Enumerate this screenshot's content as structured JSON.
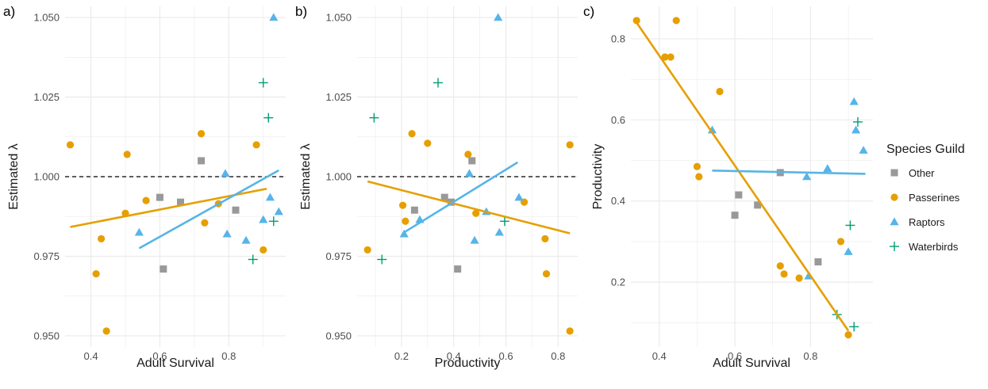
{
  "colors": {
    "Other": "#999999",
    "Passerines": "#E69F00",
    "Raptors": "#56B4E9",
    "Waterbirds": "#009E73",
    "grid": "#ebebeb",
    "refline": "#000000"
  },
  "legend": {
    "title": "Species Guild",
    "entries": [
      {
        "name": "Other",
        "shape": "square"
      },
      {
        "name": "Passerines",
        "shape": "circle"
      },
      {
        "name": "Raptors",
        "shape": "triangle"
      },
      {
        "name": "Waterbirds",
        "shape": "plus"
      }
    ],
    "placement": "right"
  },
  "chart_data": [
    {
      "type": "scatter",
      "panel_label": "a)",
      "xlabel": "Adult Survival",
      "ylabel": "Estimated λ",
      "xlim": [
        0.325,
        0.965
      ],
      "ylim": [
        0.9465,
        1.0535
      ],
      "xticks": [
        0.4,
        0.6,
        0.8
      ],
      "xtick_labels": [
        "0.4",
        "0.6",
        "0.8"
      ],
      "yticks": [
        0.95,
        0.975,
        1.0,
        1.025,
        1.05
      ],
      "ytick_labels": [
        "0.950",
        "0.975",
        "1.000",
        "1.025",
        "1.050"
      ],
      "grid": true,
      "hline": 1.0,
      "series": [
        {
          "name": "Other",
          "points": [
            [
              0.6,
              0.9935
            ],
            [
              0.61,
              0.971
            ],
            [
              0.66,
              0.992
            ],
            [
              0.72,
              1.005
            ],
            [
              0.82,
              0.9895
            ]
          ]
        },
        {
          "name": "Passerines",
          "points": [
            [
              0.34,
              1.01
            ],
            [
              0.415,
              0.9695
            ],
            [
              0.43,
              0.9805
            ],
            [
              0.445,
              0.9515
            ],
            [
              0.5,
              0.9885
            ],
            [
              0.505,
              1.007
            ],
            [
              0.56,
              0.9925
            ],
            [
              0.72,
              1.0135
            ],
            [
              0.73,
              0.9855
            ],
            [
              0.77,
              0.9915
            ],
            [
              0.88,
              1.01
            ],
            [
              0.9,
              0.977
            ]
          ]
        },
        {
          "name": "Raptors",
          "points": [
            [
              0.54,
              0.9825
            ],
            [
              0.79,
              1.001
            ],
            [
              0.795,
              0.982
            ],
            [
              0.85,
              0.98
            ],
            [
              0.9,
              0.9865
            ],
            [
              0.92,
              0.9935
            ],
            [
              0.93,
              1.05
            ],
            [
              0.945,
              0.989
            ]
          ]
        },
        {
          "name": "Waterbirds",
          "points": [
            [
              0.87,
              0.974
            ],
            [
              0.9,
              1.0295
            ],
            [
              0.915,
              1.0185
            ],
            [
              0.93,
              0.986
            ]
          ]
        }
      ],
      "fits": [
        {
          "name": "Passerines",
          "x": [
            0.34,
            0.91
          ],
          "y": [
            0.9842,
            0.9962
          ]
        },
        {
          "name": "Raptors",
          "x": [
            0.54,
            0.945
          ],
          "y": [
            0.9775,
            1.002
          ]
        }
      ]
    },
    {
      "type": "scatter",
      "panel_label": "b)",
      "xlabel": "Productivity",
      "ylabel": "Estimated λ",
      "xlim": [
        0.03,
        0.875
      ],
      "ylim": [
        0.9465,
        1.0535
      ],
      "xticks": [
        0.2,
        0.4,
        0.6,
        0.8
      ],
      "xtick_labels": [
        "0.2",
        "0.4",
        "0.6",
        "0.8"
      ],
      "yticks": [
        0.95,
        0.975,
        1.0,
        1.025,
        1.05
      ],
      "ytick_labels": [
        "0.950",
        "0.975",
        "1.000",
        "1.025",
        "1.050"
      ],
      "grid": true,
      "hline": 1.0,
      "series": [
        {
          "name": "Other",
          "points": [
            [
              0.25,
              0.9895
            ],
            [
              0.365,
              0.9935
            ],
            [
              0.39,
              0.992
            ],
            [
              0.415,
              0.971
            ],
            [
              0.47,
              1.005
            ]
          ]
        },
        {
          "name": "Passerines",
          "points": [
            [
              0.07,
              0.977
            ],
            [
              0.205,
              0.991
            ],
            [
              0.215,
              0.986
            ],
            [
              0.24,
              1.0135
            ],
            [
              0.3,
              1.0105
            ],
            [
              0.455,
              1.007
            ],
            [
              0.485,
              0.9885
            ],
            [
              0.67,
              0.992
            ],
            [
              0.75,
              0.9805
            ],
            [
              0.755,
              0.9695
            ],
            [
              0.845,
              0.9515
            ],
            [
              0.845,
              1.01
            ]
          ]
        },
        {
          "name": "Raptors",
          "points": [
            [
              0.21,
              0.982
            ],
            [
              0.27,
              0.9865
            ],
            [
              0.46,
              1.001
            ],
            [
              0.48,
              0.98
            ],
            [
              0.525,
              0.989
            ],
            [
              0.57,
              1.05
            ],
            [
              0.575,
              0.9825
            ],
            [
              0.65,
              0.9935
            ]
          ]
        },
        {
          "name": "Waterbirds",
          "points": [
            [
              0.095,
              1.0185
            ],
            [
              0.125,
              0.974
            ],
            [
              0.34,
              1.0295
            ],
            [
              0.595,
              0.986
            ]
          ]
        }
      ],
      "fits": [
        {
          "name": "Passerines",
          "x": [
            0.07,
            0.845
          ],
          "y": [
            0.9985,
            0.9822
          ]
        },
        {
          "name": "Raptors",
          "x": [
            0.21,
            0.645
          ],
          "y": [
            0.9825,
            1.0045
          ]
        }
      ]
    },
    {
      "type": "scatter",
      "panel_label": "c)",
      "xlabel": "Adult Survival",
      "ylabel": "Productivity",
      "xlim": [
        0.325,
        0.965
      ],
      "ylim": [
        0.04,
        0.88
      ],
      "xticks": [
        0.4,
        0.6,
        0.8
      ],
      "xtick_labels": [
        "0.4",
        "0.6",
        "0.8"
      ],
      "yticks": [
        0.2,
        0.4,
        0.6,
        0.8
      ],
      "ytick_labels": [
        "0.2",
        "0.4",
        "0.6",
        "0.8"
      ],
      "grid": true,
      "series": [
        {
          "name": "Other",
          "points": [
            [
              0.6,
              0.365
            ],
            [
              0.61,
              0.415
            ],
            [
              0.66,
              0.39
            ],
            [
              0.72,
              0.47
            ],
            [
              0.82,
              0.25
            ]
          ]
        },
        {
          "name": "Passerines",
          "points": [
            [
              0.34,
              0.845
            ],
            [
              0.415,
              0.755
            ],
            [
              0.43,
              0.755
            ],
            [
              0.445,
              0.845
            ],
            [
              0.5,
              0.485
            ],
            [
              0.505,
              0.46
            ],
            [
              0.56,
              0.67
            ],
            [
              0.72,
              0.24
            ],
            [
              0.73,
              0.22
            ],
            [
              0.77,
              0.21
            ],
            [
              0.88,
              0.3
            ],
            [
              0.9,
              0.07
            ]
          ]
        },
        {
          "name": "Raptors",
          "points": [
            [
              0.54,
              0.575
            ],
            [
              0.79,
              0.46
            ],
            [
              0.795,
              0.215
            ],
            [
              0.845,
              0.48
            ],
            [
              0.9,
              0.275
            ],
            [
              0.915,
              0.645
            ],
            [
              0.92,
              0.575
            ],
            [
              0.94,
              0.525
            ]
          ]
        },
        {
          "name": "Waterbirds",
          "points": [
            [
              0.87,
              0.12
            ],
            [
              0.905,
              0.34
            ],
            [
              0.915,
              0.09
            ],
            [
              0.925,
              0.595
            ]
          ]
        }
      ],
      "fits": [
        {
          "name": "Passerines",
          "x": [
            0.34,
            0.9
          ],
          "y": [
            0.84,
            0.08
          ]
        },
        {
          "name": "Raptors",
          "x": [
            0.54,
            0.945
          ],
          "y": [
            0.475,
            0.467
          ]
        }
      ]
    }
  ]
}
